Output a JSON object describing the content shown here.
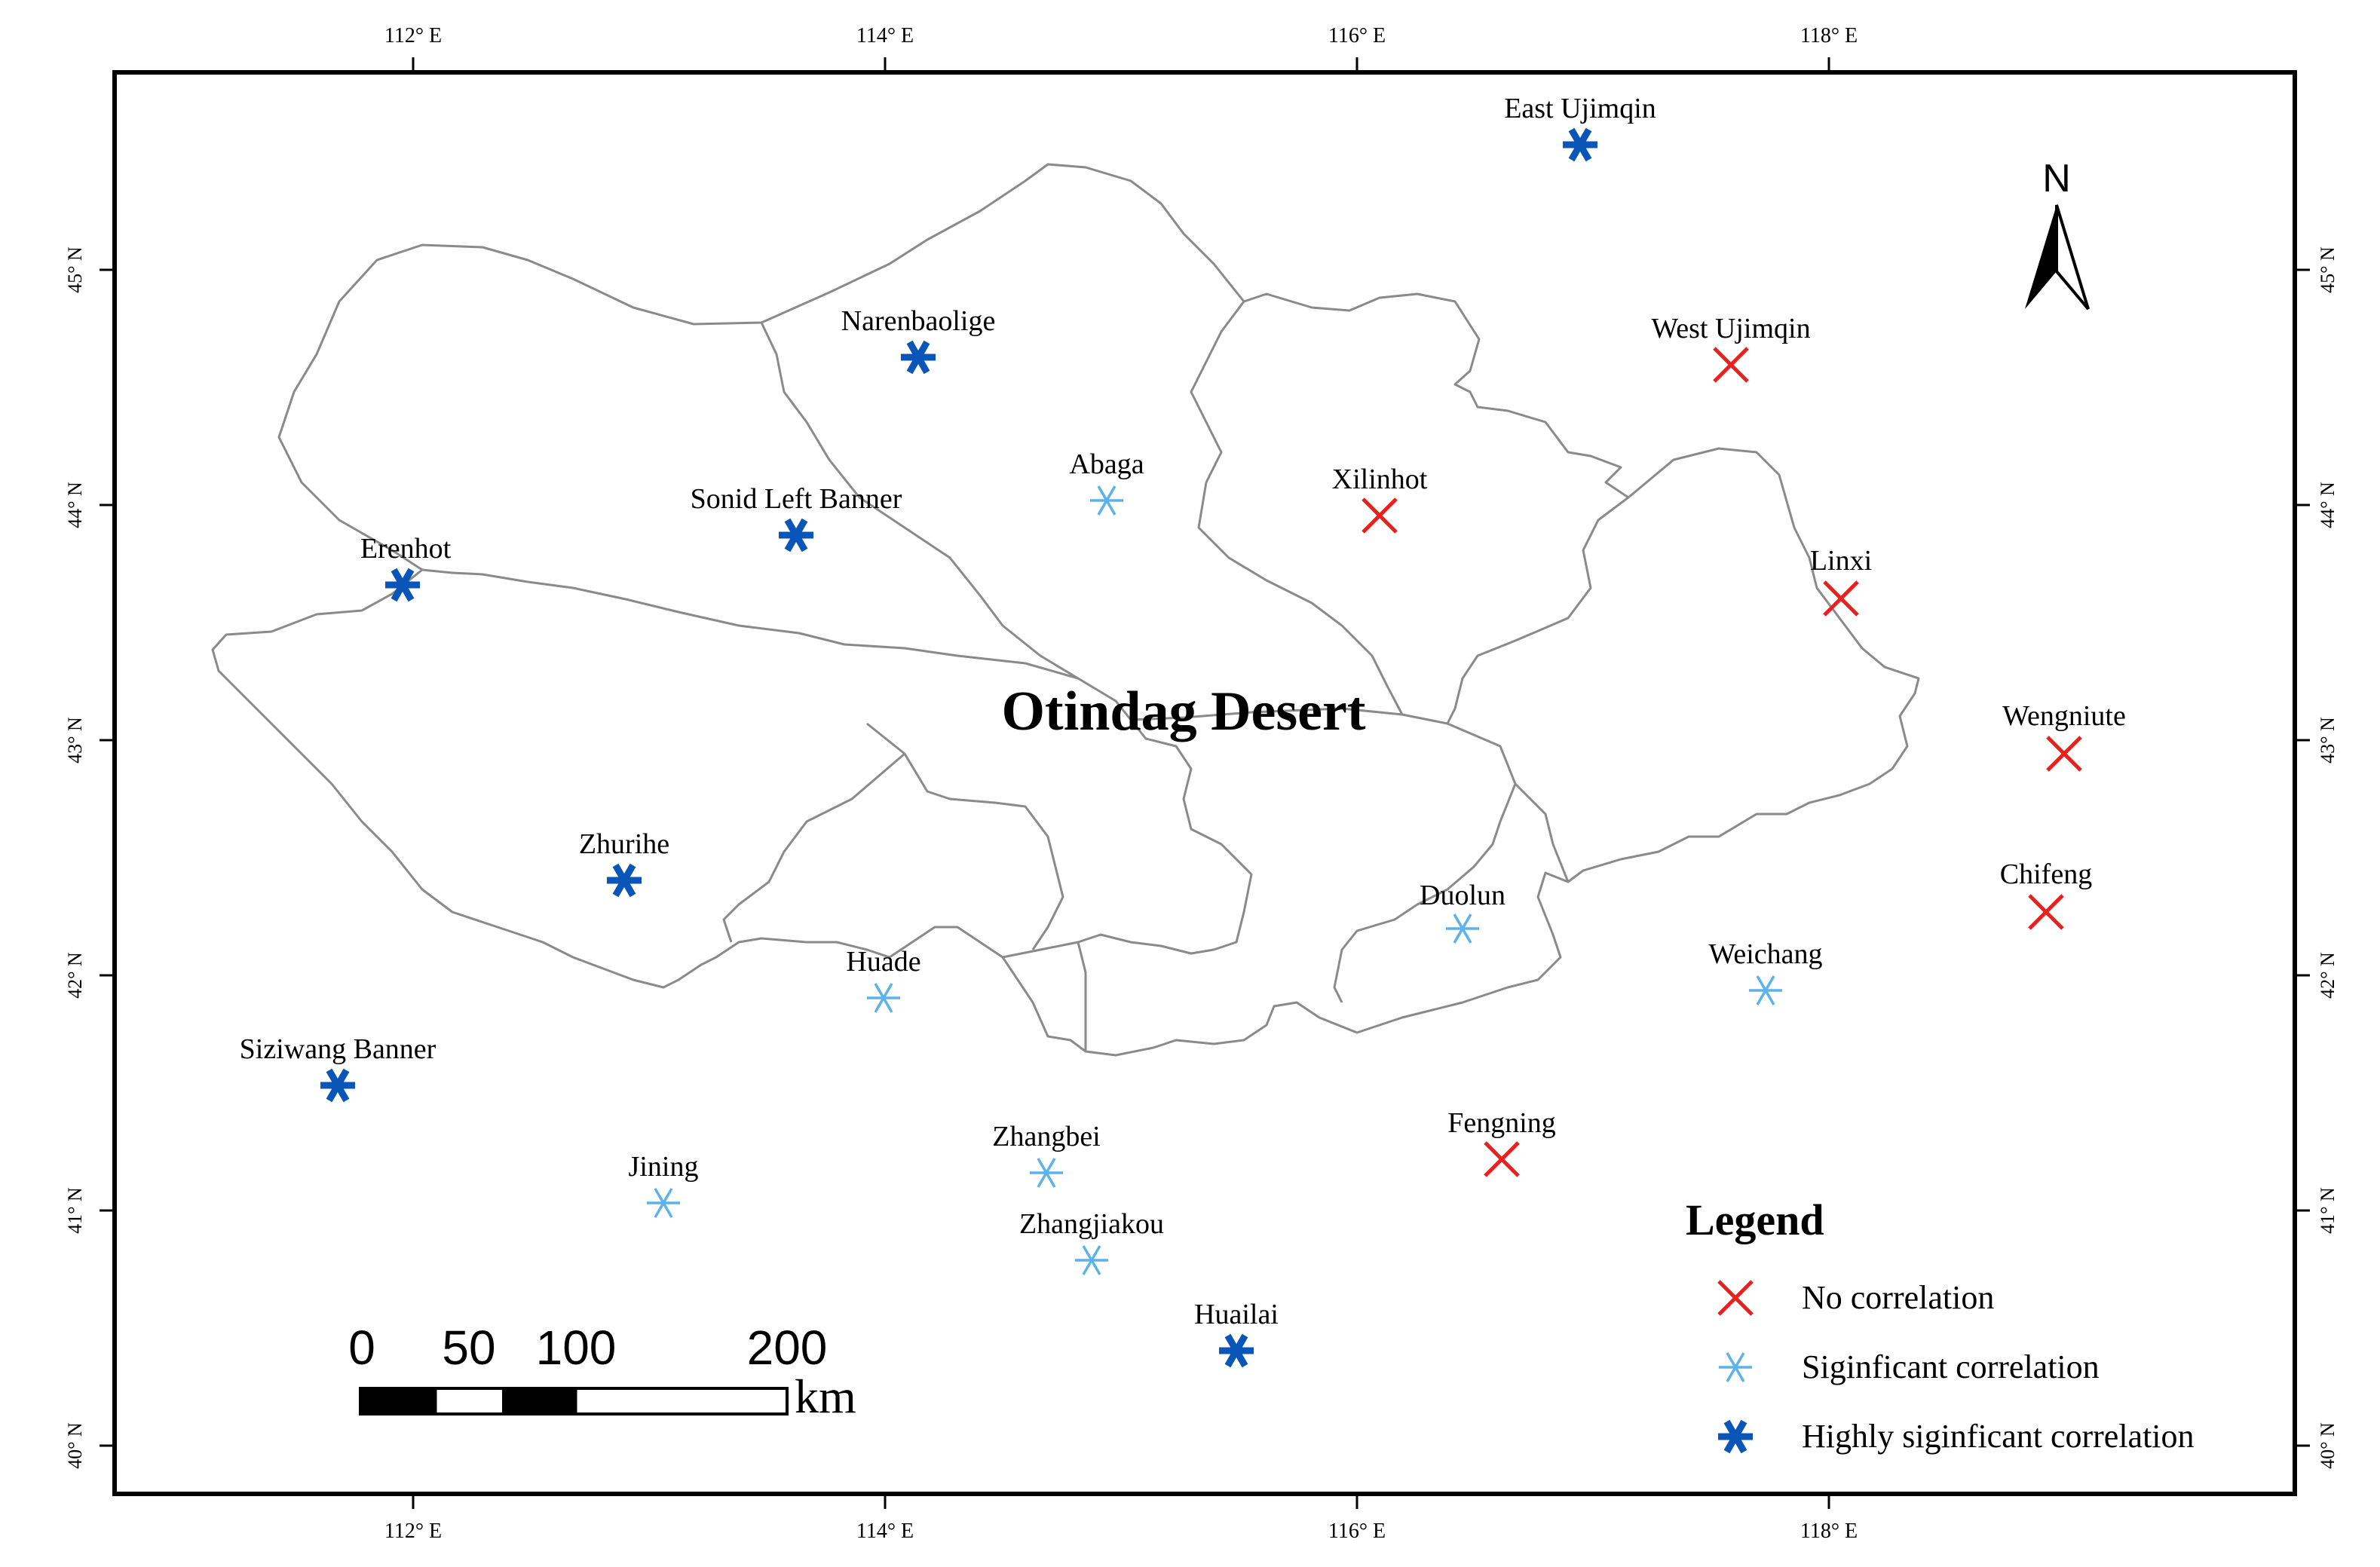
{
  "map": {
    "title": "Otindag Desert",
    "north_label": "N",
    "colors": {
      "frame": "#000000",
      "boundary": "#8a8a8a",
      "no_correlation": "#e8211d",
      "significant": "#5cb3ea",
      "highly_significant": "#0a55b8"
    },
    "longitude_labels": [
      "112° E",
      "114° E",
      "116° E",
      "118° E"
    ],
    "latitude_labels": [
      "45° N",
      "44° N",
      "43° N",
      "42° N",
      "41° N",
      "40° N"
    ],
    "stations": [
      {
        "name": "East Ujimqin",
        "category": "highly_significant"
      },
      {
        "name": "Narenbaolige",
        "category": "highly_significant"
      },
      {
        "name": "West Ujimqin",
        "category": "no_correlation"
      },
      {
        "name": "Abaga",
        "category": "significant"
      },
      {
        "name": "Sonid Left Banner",
        "category": "highly_significant"
      },
      {
        "name": "Xilinhot",
        "category": "no_correlation"
      },
      {
        "name": "Erenhot",
        "category": "highly_significant"
      },
      {
        "name": "Linxi",
        "category": "no_correlation"
      },
      {
        "name": "Wengniute",
        "category": "no_correlation"
      },
      {
        "name": "Zhurihe",
        "category": "highly_significant"
      },
      {
        "name": "Chifeng",
        "category": "no_correlation"
      },
      {
        "name": "Duolun",
        "category": "significant"
      },
      {
        "name": "Huade",
        "category": "significant"
      },
      {
        "name": "Weichang",
        "category": "significant"
      },
      {
        "name": "Siziwang Banner",
        "category": "highly_significant"
      },
      {
        "name": "Fengning",
        "category": "no_correlation"
      },
      {
        "name": "Zhangbei",
        "category": "significant"
      },
      {
        "name": "Jining",
        "category": "significant"
      },
      {
        "name": "Zhangjiakou",
        "category": "significant"
      },
      {
        "name": "Huailai",
        "category": "highly_significant"
      }
    ],
    "legend": {
      "title": "Legend",
      "items": [
        {
          "label": "No correlation",
          "category": "no_correlation"
        },
        {
          "label": "Siginficant correlation",
          "category": "significant"
        },
        {
          "label": "Highly siginficant correlation",
          "category": "highly_significant"
        }
      ]
    },
    "scale_bar": {
      "ticks": [
        "0",
        "50",
        "100",
        "200"
      ],
      "unit": "km"
    }
  }
}
